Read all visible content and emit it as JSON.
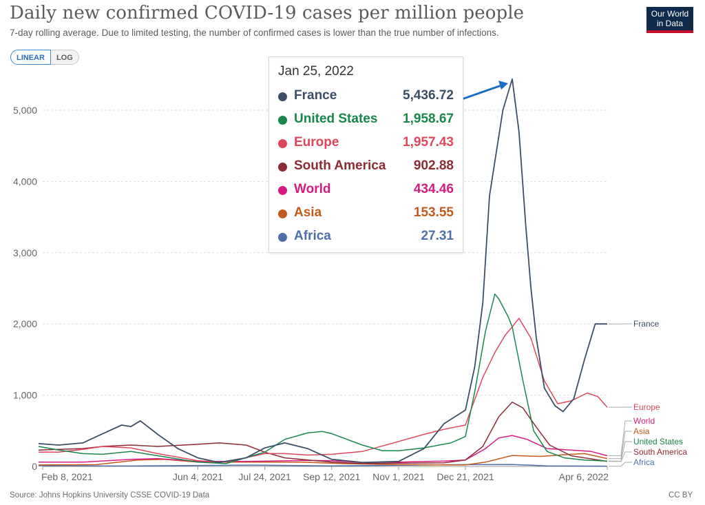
{
  "header": {
    "title": "Daily new confirmed COVID-19 cases per million people",
    "subtitle": "7-day rolling average. Due to limited testing, the number of confirmed cases is lower than the true number of infections.",
    "logo_line1": "Our World",
    "logo_line2": "in Data"
  },
  "scale_toggle": {
    "linear_label": "LINEAR",
    "log_label": "LOG",
    "selected": "LINEAR"
  },
  "footer": {
    "source": "Source: Johns Hopkins University CSSE COVID-19 Data",
    "license": "CC BY"
  },
  "tooltip": {
    "date": "Jan 25, 2022",
    "rows": [
      {
        "name": "France",
        "value": "5,436.72",
        "color": "#3c4e66"
      },
      {
        "name": "United States",
        "value": "1,958.67",
        "color": "#18864b"
      },
      {
        "name": "Europe",
        "value": "1,957.43",
        "color": "#e0465b"
      },
      {
        "name": "South America",
        "value": "902.88",
        "color": "#8c2a35"
      },
      {
        "name": "World",
        "value": "434.46",
        "color": "#d61b80"
      },
      {
        "name": "Asia",
        "value": "153.55",
        "color": "#c25a1b"
      },
      {
        "name": "Africa",
        "value": "27.31",
        "color": "#4e6ea8"
      }
    ]
  },
  "chart_data": {
    "type": "line",
    "title": "Daily new confirmed COVID-19 cases per million people",
    "xlabel": "",
    "ylabel": "",
    "x_range": [
      "2021-02-08",
      "2022-04-06"
    ],
    "ylim": [
      0,
      5500
    ],
    "y_ticks": [
      0,
      1000,
      2000,
      3000,
      4000,
      5000
    ],
    "y_tick_labels": [
      "0",
      "1,000",
      "2,000",
      "3,000",
      "4,000",
      "5,000"
    ],
    "x_ticks": [
      {
        "date": "2021-02-08",
        "label": "Feb 8, 2021"
      },
      {
        "date": "2021-06-04",
        "label": "Jun 4, 2021"
      },
      {
        "date": "2021-07-24",
        "label": "Jul 24, 2021"
      },
      {
        "date": "2021-09-12",
        "label": "Sep 12, 2021"
      },
      {
        "date": "2021-11-01",
        "label": "Nov 1, 2021"
      },
      {
        "date": "2021-12-21",
        "label": "Dec 21, 2021"
      },
      {
        "date": "2022-04-06",
        "label": "Apr 6, 2022"
      }
    ],
    "grid": "horizontal dashed",
    "legend": "inline labels at right end of lines",
    "series": [
      {
        "name": "France",
        "color": "#3c4e66",
        "points": [
          [
            "2021-02-01",
            320
          ],
          [
            "2021-02-20",
            300
          ],
          [
            "2021-03-10",
            330
          ],
          [
            "2021-03-25",
            460
          ],
          [
            "2021-04-08",
            580
          ],
          [
            "2021-04-15",
            560
          ],
          [
            "2021-04-22",
            640
          ],
          [
            "2021-05-05",
            450
          ],
          [
            "2021-05-20",
            250
          ],
          [
            "2021-06-04",
            120
          ],
          [
            "2021-06-20",
            55
          ],
          [
            "2021-07-10",
            120
          ],
          [
            "2021-07-24",
            260
          ],
          [
            "2021-08-08",
            330
          ],
          [
            "2021-08-25",
            250
          ],
          [
            "2021-09-12",
            100
          ],
          [
            "2021-10-05",
            55
          ],
          [
            "2021-11-01",
            70
          ],
          [
            "2021-11-20",
            250
          ],
          [
            "2021-12-05",
            600
          ],
          [
            "2021-12-21",
            790
          ],
          [
            "2021-12-28",
            1400
          ],
          [
            "2022-01-03",
            2300
          ],
          [
            "2022-01-08",
            3800
          ],
          [
            "2022-01-13",
            4400
          ],
          [
            "2022-01-18",
            5000
          ],
          [
            "2022-01-25",
            5436.72
          ],
          [
            "2022-01-30",
            4700
          ],
          [
            "2022-02-04",
            3400
          ],
          [
            "2022-02-08",
            2500
          ],
          [
            "2022-02-12",
            1800
          ],
          [
            "2022-02-18",
            1100
          ],
          [
            "2022-02-26",
            850
          ],
          [
            "2022-03-04",
            770
          ],
          [
            "2022-03-12",
            950
          ],
          [
            "2022-03-20",
            1500
          ],
          [
            "2022-03-28",
            2000
          ],
          [
            "2022-04-06",
            2000
          ]
        ]
      },
      {
        "name": "United States",
        "color": "#18864b",
        "points": [
          [
            "2021-02-01",
            280
          ],
          [
            "2021-02-20",
            230
          ],
          [
            "2021-03-10",
            180
          ],
          [
            "2021-03-25",
            170
          ],
          [
            "2021-04-15",
            210
          ],
          [
            "2021-05-05",
            150
          ],
          [
            "2021-06-04",
            60
          ],
          [
            "2021-06-25",
            40
          ],
          [
            "2021-07-24",
            200
          ],
          [
            "2021-08-08",
            380
          ],
          [
            "2021-08-25",
            470
          ],
          [
            "2021-09-05",
            490
          ],
          [
            "2021-09-12",
            460
          ],
          [
            "2021-10-05",
            300
          ],
          [
            "2021-10-20",
            220
          ],
          [
            "2021-11-01",
            220
          ],
          [
            "2021-11-20",
            260
          ],
          [
            "2021-12-10",
            330
          ],
          [
            "2021-12-21",
            420
          ],
          [
            "2021-12-28",
            1050
          ],
          [
            "2022-01-05",
            1900
          ],
          [
            "2022-01-12",
            2420
          ],
          [
            "2022-01-15",
            2350
          ],
          [
            "2022-01-22",
            2100
          ],
          [
            "2022-01-25",
            1958.67
          ],
          [
            "2022-02-02",
            1200
          ],
          [
            "2022-02-10",
            500
          ],
          [
            "2022-02-20",
            210
          ],
          [
            "2022-03-05",
            120
          ],
          [
            "2022-03-20",
            90
          ],
          [
            "2022-04-06",
            75
          ]
        ]
      },
      {
        "name": "Europe",
        "color": "#e0465b",
        "points": [
          [
            "2021-02-01",
            200
          ],
          [
            "2021-02-20",
            200
          ],
          [
            "2021-03-10",
            240
          ],
          [
            "2021-03-25",
            280
          ],
          [
            "2021-04-15",
            260
          ],
          [
            "2021-05-05",
            180
          ],
          [
            "2021-06-04",
            80
          ],
          [
            "2021-06-25",
            60
          ],
          [
            "2021-07-24",
            180
          ],
          [
            "2021-08-08",
            180
          ],
          [
            "2021-08-25",
            160
          ],
          [
            "2021-09-12",
            170
          ],
          [
            "2021-10-05",
            210
          ],
          [
            "2021-11-01",
            350
          ],
          [
            "2021-11-20",
            450
          ],
          [
            "2021-12-05",
            520
          ],
          [
            "2021-12-21",
            580
          ],
          [
            "2022-01-03",
            1250
          ],
          [
            "2022-01-12",
            1600
          ],
          [
            "2022-01-20",
            1850
          ],
          [
            "2022-01-25",
            1957.43
          ],
          [
            "2022-01-30",
            2080
          ],
          [
            "2022-02-08",
            1800
          ],
          [
            "2022-02-18",
            1200
          ],
          [
            "2022-02-28",
            880
          ],
          [
            "2022-03-10",
            920
          ],
          [
            "2022-03-22",
            1030
          ],
          [
            "2022-03-30",
            980
          ],
          [
            "2022-04-06",
            830
          ]
        ]
      },
      {
        "name": "South America",
        "color": "#8c2a35",
        "points": [
          [
            "2021-02-01",
            230
          ],
          [
            "2021-02-20",
            240
          ],
          [
            "2021-03-10",
            250
          ],
          [
            "2021-03-25",
            280
          ],
          [
            "2021-04-15",
            300
          ],
          [
            "2021-05-05",
            280
          ],
          [
            "2021-06-04",
            310
          ],
          [
            "2021-06-20",
            330
          ],
          [
            "2021-07-10",
            300
          ],
          [
            "2021-07-24",
            200
          ],
          [
            "2021-08-08",
            120
          ],
          [
            "2021-09-12",
            60
          ],
          [
            "2021-10-05",
            40
          ],
          [
            "2021-11-01",
            45
          ],
          [
            "2021-12-05",
            50
          ],
          [
            "2021-12-21",
            90
          ],
          [
            "2022-01-03",
            280
          ],
          [
            "2022-01-15",
            700
          ],
          [
            "2022-01-25",
            902.88
          ],
          [
            "2022-02-02",
            820
          ],
          [
            "2022-02-12",
            550
          ],
          [
            "2022-02-22",
            300
          ],
          [
            "2022-03-10",
            150
          ],
          [
            "2022-04-06",
            70
          ]
        ]
      },
      {
        "name": "World",
        "color": "#d61b80",
        "points": [
          [
            "2021-02-01",
            60
          ],
          [
            "2021-03-10",
            60
          ],
          [
            "2021-04-15",
            100
          ],
          [
            "2021-05-05",
            110
          ],
          [
            "2021-06-04",
            70
          ],
          [
            "2021-07-10",
            70
          ],
          [
            "2021-08-25",
            85
          ],
          [
            "2021-09-12",
            80
          ],
          [
            "2021-10-05",
            55
          ],
          [
            "2021-11-01",
            60
          ],
          [
            "2021-12-05",
            75
          ],
          [
            "2021-12-21",
            90
          ],
          [
            "2022-01-05",
            250
          ],
          [
            "2022-01-15",
            400
          ],
          [
            "2022-01-25",
            434.46
          ],
          [
            "2022-02-05",
            380
          ],
          [
            "2022-02-20",
            250
          ],
          [
            "2022-03-10",
            230
          ],
          [
            "2022-03-25",
            210
          ],
          [
            "2022-04-06",
            150
          ]
        ]
      },
      {
        "name": "Asia",
        "color": "#c25a1b",
        "points": [
          [
            "2021-02-01",
            20
          ],
          [
            "2021-03-20",
            25
          ],
          [
            "2021-04-20",
            90
          ],
          [
            "2021-05-10",
            100
          ],
          [
            "2021-06-04",
            60
          ],
          [
            "2021-07-24",
            60
          ],
          [
            "2021-08-20",
            60
          ],
          [
            "2021-09-20",
            40
          ],
          [
            "2021-11-01",
            25
          ],
          [
            "2021-12-21",
            20
          ],
          [
            "2022-01-05",
            60
          ],
          [
            "2022-01-25",
            153.55
          ],
          [
            "2022-02-15",
            140
          ],
          [
            "2022-03-10",
            170
          ],
          [
            "2022-03-20",
            180
          ],
          [
            "2022-04-06",
            110
          ]
        ]
      },
      {
        "name": "Africa",
        "color": "#4e6ea8",
        "points": [
          [
            "2021-02-01",
            10
          ],
          [
            "2021-04-15",
            6
          ],
          [
            "2021-07-15",
            18
          ],
          [
            "2021-09-12",
            8
          ],
          [
            "2021-12-21",
            25
          ],
          [
            "2022-01-25",
            27.31
          ],
          [
            "2022-02-20",
            8
          ],
          [
            "2022-04-06",
            4
          ]
        ]
      }
    ],
    "end_labels": [
      "France",
      "Europe",
      "World",
      "Asia",
      "United States",
      "South America",
      "Africa"
    ]
  }
}
